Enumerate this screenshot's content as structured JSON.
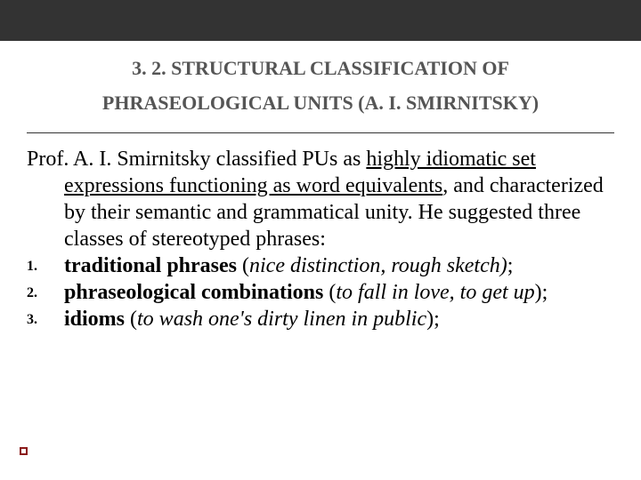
{
  "title": {
    "line1": "3. 2. STRUCTURAL CLASSIFICATION OF",
    "line2_pre": "PHRASEOLOGICAL UNITS (A. I. SMIRNITSKY",
    "line2_paren": ")"
  },
  "para": {
    "lead": "Prof. A. I. Smirnitsky classified PUs as ",
    "underlined": "highly idiomatic set expressions functioning as word equivalents",
    "rest": ", and characterized by their semantic and grammatical unity. He suggested three classes of stereotyped phrases:"
  },
  "items": [
    {
      "num": "1.",
      "bold": "traditional phrases",
      "plain_open": " (",
      "italic": "nice distinction, rough sketch)",
      "tail": ";"
    },
    {
      "num": "2.",
      "bold": "phraseological combinations",
      "plain_open": " (",
      "italic": "to fall in love, to get up",
      "tail": ");"
    },
    {
      "num": "3.",
      "bold": "idioms",
      "plain_open": " (",
      "italic": "to wash one's dirty linen in public",
      "tail": ");"
    }
  ],
  "colors": {
    "topbar": "#333333",
    "title_text": "#555555",
    "body_text": "#000000",
    "bullet_border": "#8b1a1a",
    "background": "#ffffff"
  }
}
